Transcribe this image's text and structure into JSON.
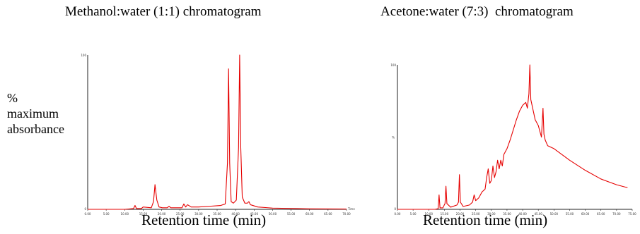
{
  "chart_data": [
    {
      "type": "line",
      "title": "Methanol:water (1:1) chromatogram",
      "xlabel": "Retention time (min)",
      "ylabel": "% maximum absorbance",
      "xlim": [
        0,
        70
      ],
      "ylim": [
        0,
        100
      ],
      "x_ticks": [
        "0.00",
        "5.00",
        "10.00",
        "15.00",
        "20.00",
        "25.00",
        "30.00",
        "35.00",
        "40.00",
        "45.00",
        "50.00",
        "55.00",
        "60.00",
        "65.00",
        "70.00"
      ],
      "x_axis_unit": "Time",
      "y_top_label": "100",
      "y_zero_label": "0",
      "color": "#e60000",
      "series": [
        {
          "x": [
            0,
            10,
            12.4,
            12.8,
            13.2,
            14.5,
            15,
            17.2,
            17.8,
            18.2,
            18.7,
            19.3,
            20.2,
            21.5,
            22,
            22.5,
            23.5,
            25.5,
            26,
            26.5,
            27,
            28,
            30,
            33,
            36,
            37.2,
            37.8,
            38.1,
            38.4,
            38.8,
            39.4,
            40.2,
            40.8,
            41.1,
            41.4,
            41.8,
            42.5,
            43.2,
            43.6,
            44,
            46,
            50,
            60,
            70
          ],
          "y": [
            0,
            0,
            0.5,
            2.5,
            0.5,
            0.5,
            1.5,
            1,
            5,
            16,
            6,
            1.5,
            1,
            1,
            2,
            1,
            1,
            1,
            3.5,
            1.5,
            3,
            1.5,
            1.5,
            2,
            2.5,
            3.5,
            30,
            91,
            30,
            5,
            4,
            6,
            40,
            100,
            40,
            8,
            4,
            4,
            5,
            3,
            1.5,
            0.8,
            0.3,
            0.2
          ]
        }
      ]
    },
    {
      "type": "line",
      "title": "Acetone:water (7:3)  chromatogram",
      "xlabel": "Retention time (min)",
      "xlim": [
        0,
        75
      ],
      "ylim": [
        0,
        100
      ],
      "x_ticks": [
        "0.00",
        "5.00",
        "10.00",
        "15.00",
        "20.00",
        "25.00",
        "30.00",
        "35.00",
        "40.00",
        "45.00",
        "50.00",
        "55.00",
        "60.00",
        "65.00",
        "70.00",
        "75.00"
      ],
      "y_top_label": "100",
      "y_mid_label": "%",
      "y_zero_label": "0",
      "color": "#e60000",
      "series": [
        {
          "x": [
            0,
            12,
            13,
            13.3,
            13.6,
            14.5,
            15.2,
            15.5,
            15.8,
            17,
            19,
            19.5,
            19.8,
            20.1,
            21,
            23,
            24,
            24.5,
            25,
            26,
            27,
            28,
            28.5,
            29,
            29.5,
            30,
            30.5,
            31,
            31.5,
            32,
            32.5,
            33,
            33.5,
            34,
            35,
            36,
            37,
            38,
            39,
            40,
            41,
            41.5,
            42,
            42.3,
            42.6,
            43,
            44,
            45,
            46,
            46.5,
            46.8,
            47.2,
            48,
            50,
            55,
            60,
            65,
            70,
            73.5
          ],
          "y": [
            0,
            0,
            0.5,
            10,
            1,
            1,
            4,
            16,
            4,
            1.5,
            3,
            5,
            24,
            5,
            2,
            3,
            5,
            10,
            6,
            8,
            12,
            14,
            22,
            28,
            18,
            20,
            30,
            22,
            26,
            34,
            28,
            34,
            30,
            38,
            42,
            48,
            55,
            62,
            68,
            72,
            74,
            70,
            80,
            100,
            76,
            72,
            62,
            58,
            50,
            70,
            52,
            48,
            44,
            42,
            34,
            27,
            21,
            17,
            15
          ]
        }
      ]
    }
  ]
}
